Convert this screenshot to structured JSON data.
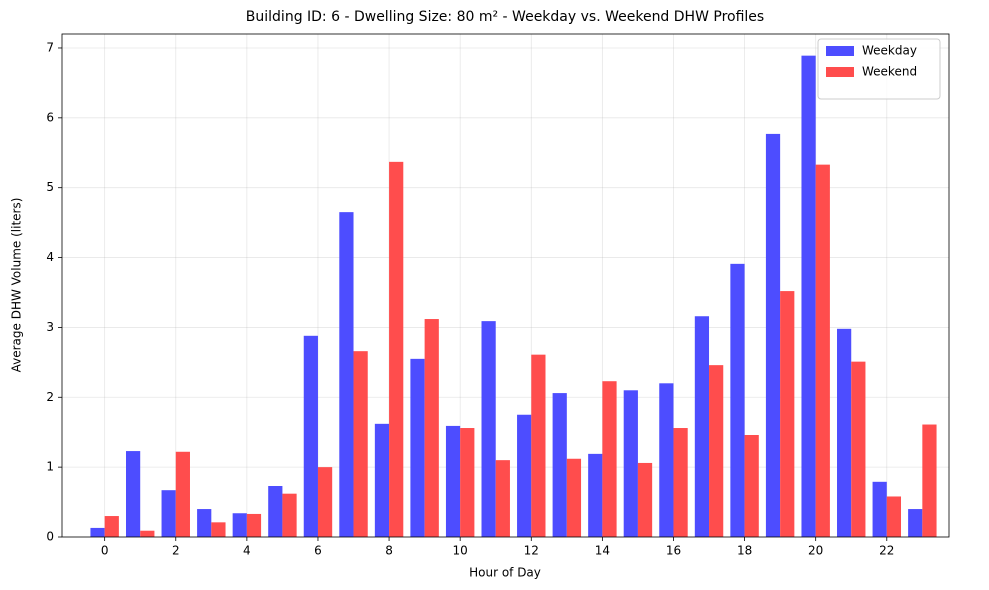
{
  "chart_data": {
    "type": "bar",
    "title": "Building ID: 6 - Dwelling Size: 80 m² - Weekday vs. Weekend DHW Profiles",
    "x_label": "Hour of Day",
    "y_label": "Average DHW Volume (liters)",
    "x": [
      0,
      1,
      2,
      3,
      4,
      5,
      6,
      7,
      8,
      9,
      10,
      11,
      12,
      13,
      14,
      15,
      16,
      17,
      18,
      19,
      20,
      21,
      22,
      23
    ],
    "series": [
      {
        "name": "Weekday",
        "color": "#4d4dff",
        "values": [
          0.13,
          1.23,
          0.67,
          0.4,
          0.34,
          0.73,
          2.88,
          4.65,
          1.62,
          2.55,
          1.59,
          3.09,
          1.75,
          2.06,
          1.19,
          2.1,
          2.2,
          3.16,
          3.91,
          5.77,
          6.89,
          2.98,
          0.79,
          0.4
        ]
      },
      {
        "name": "Weekend",
        "color": "#ff4d4d",
        "values": [
          0.3,
          0.09,
          1.22,
          0.21,
          0.33,
          0.62,
          1.0,
          2.66,
          5.37,
          3.12,
          1.56,
          1.1,
          2.61,
          1.12,
          2.23,
          1.06,
          1.56,
          2.46,
          1.46,
          3.52,
          5.33,
          2.51,
          0.58,
          1.61
        ]
      }
    ],
    "xlim": [
      -1.2,
      23.75
    ],
    "xticks": [
      0,
      2,
      4,
      6,
      8,
      10,
      12,
      14,
      16,
      18,
      20,
      22
    ],
    "ylim": [
      0,
      7.2
    ],
    "yticks": [
      0,
      1,
      2,
      3,
      4,
      5,
      6,
      7
    ],
    "grid": true,
    "legend": "upper right"
  }
}
